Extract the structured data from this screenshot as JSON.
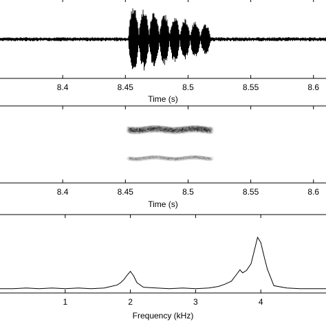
{
  "chart_data": [
    {
      "type": "line",
      "subtype": "waveform",
      "title": "",
      "xlabel": "Time (s)",
      "ylabel": "",
      "xlim": [
        8.35,
        8.61
      ],
      "ylim": [
        -1,
        1
      ],
      "x_ticks": [
        8.4,
        8.45,
        8.5,
        8.55,
        8.6
      ],
      "x_tick_labels": [
        "8.4",
        "8.45",
        "8.5",
        "8.55",
        "8.6"
      ],
      "grid": false,
      "noise_amplitude": 0.05,
      "pulse_train": {
        "start": 8.4525,
        "end": 8.518,
        "peak_amplitude": 0.85,
        "pulse_count": 8
      },
      "color": "#000000"
    },
    {
      "type": "heatmap",
      "subtype": "spectrogram",
      "title": "",
      "xlabel": "Time (s)",
      "ylabel": "",
      "xlim": [
        8.35,
        8.61
      ],
      "x_ticks": [
        8.4,
        8.45,
        8.5,
        8.55,
        8.6
      ],
      "x_tick_labels": [
        "8.4",
        "8.45",
        "8.5",
        "8.55",
        "8.6"
      ],
      "grid": false,
      "bands": [
        {
          "start": 8.45,
          "end": 8.52,
          "level": 0.7,
          "intensity": 0.95,
          "thickness": 0.1
        },
        {
          "start": 8.45,
          "end": 8.52,
          "level": 0.33,
          "intensity": 0.55,
          "thickness": 0.06
        }
      ],
      "colormap": "gray_r"
    },
    {
      "type": "line",
      "subtype": "spectrum",
      "title": "",
      "xlabel": "Frequency (kHz)",
      "ylabel": "",
      "xlim": [
        0,
        5
      ],
      "ylim": [
        0,
        1
      ],
      "x_ticks": [
        1,
        2,
        3,
        4
      ],
      "x_tick_labels": [
        "1",
        "2",
        "3",
        "4"
      ],
      "grid": false,
      "x": [
        0,
        0.2,
        0.4,
        0.6,
        0.8,
        1.0,
        1.2,
        1.4,
        1.6,
        1.7,
        1.8,
        1.85,
        1.9,
        1.95,
        2.0,
        2.05,
        2.1,
        2.2,
        2.4,
        2.6,
        2.8,
        3.0,
        3.2,
        3.35,
        3.45,
        3.55,
        3.62,
        3.68,
        3.72,
        3.78,
        3.85,
        3.9,
        3.95,
        4.0,
        4.05,
        4.1,
        4.2,
        4.4,
        4.6,
        4.8,
        5.0
      ],
      "y": [
        0.02,
        0.02,
        0.03,
        0.02,
        0.03,
        0.02,
        0.03,
        0.02,
        0.03,
        0.05,
        0.07,
        0.1,
        0.14,
        0.2,
        0.25,
        0.19,
        0.1,
        0.04,
        0.03,
        0.02,
        0.03,
        0.02,
        0.03,
        0.05,
        0.08,
        0.12,
        0.2,
        0.27,
        0.23,
        0.26,
        0.35,
        0.52,
        0.7,
        0.63,
        0.45,
        0.28,
        0.06,
        0.03,
        0.02,
        0.02,
        0.02
      ],
      "color": "#000000"
    }
  ]
}
